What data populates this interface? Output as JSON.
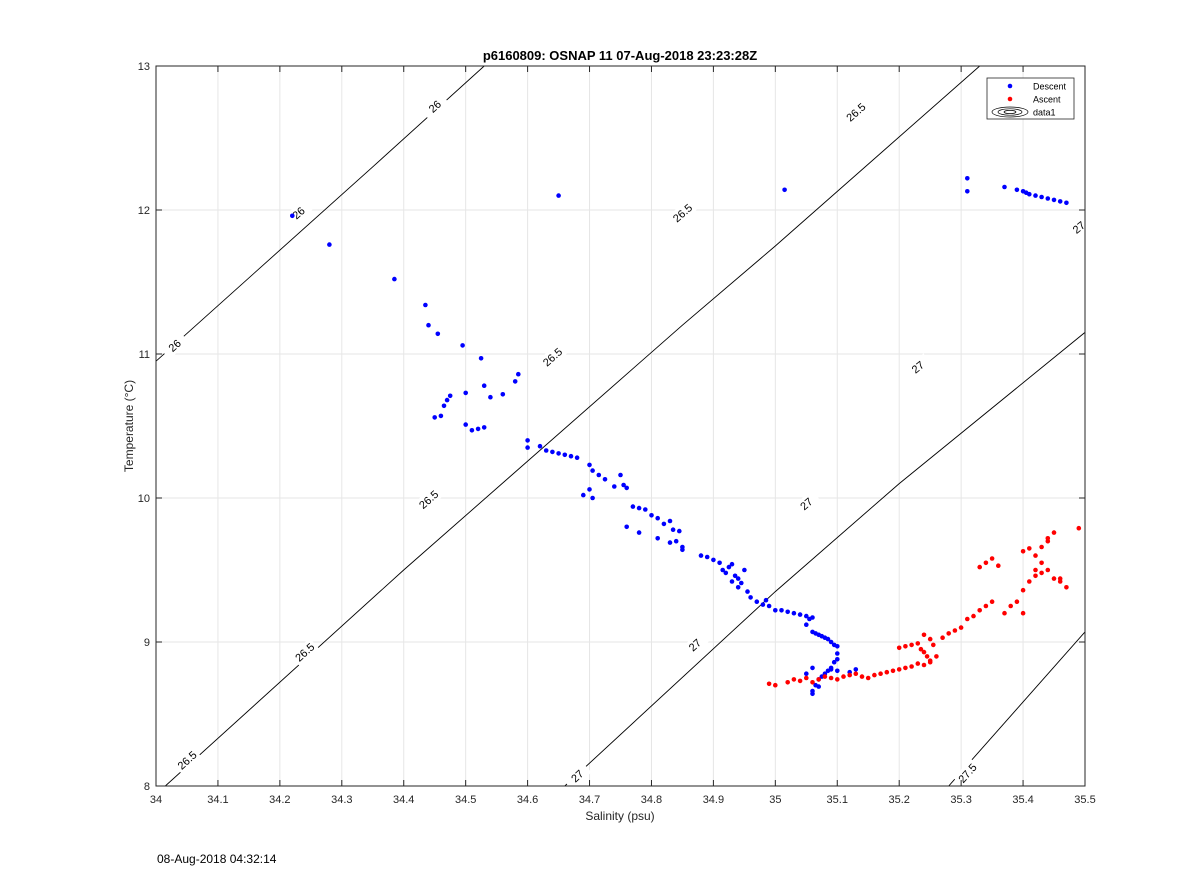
{
  "footer": {
    "timestamp": "08-Aug-2018 04:32:14"
  },
  "chart_data": {
    "type": "scatter",
    "title": "p6160809: OSNAP 11 07-Aug-2018 23:23:28Z",
    "xlabel": "Salinity (psu)",
    "ylabel": "Temperature (°C)",
    "xlim": [
      34,
      35.5
    ],
    "ylim": [
      8,
      13
    ],
    "xticks": [
      34,
      34.1,
      34.2,
      34.3,
      34.4,
      34.5,
      34.6,
      34.7,
      34.8,
      34.9,
      35,
      35.1,
      35.2,
      35.3,
      35.4,
      35.5
    ],
    "xtick_labels": [
      "34",
      "34.1",
      "34.2",
      "34.3",
      "34.4",
      "34.5",
      "34.6",
      "34.7",
      "34.8",
      "34.9",
      "35",
      "35.1",
      "35.2",
      "35.3",
      "35.4",
      "35.5"
    ],
    "yticks": [
      8,
      9,
      10,
      11,
      12,
      13
    ],
    "ytick_labels": [
      "8",
      "9",
      "10",
      "11",
      "12",
      "13"
    ],
    "grid": true,
    "legend": {
      "position": "top-right",
      "entries": [
        "Descent",
        "Ascent",
        "data1"
      ]
    },
    "colors": {
      "descent": "#0000ff",
      "ascent": "#ff0000",
      "contour": "#000000",
      "grid": "#e6e6e6"
    },
    "isopycnals": [
      {
        "label": "26",
        "points": [
          [
            34.0,
            10.95
          ],
          [
            34.35,
            12.3
          ],
          [
            34.53,
            13.0
          ]
        ],
        "label_positions": [
          [
            34.03,
            11.06
          ],
          [
            34.23,
            11.98
          ],
          [
            34.45,
            12.72
          ]
        ]
      },
      {
        "label": "26.5",
        "points": [
          [
            34.015,
            8.0
          ],
          [
            34.4,
            9.5
          ],
          [
            34.85,
            11.2
          ],
          [
            35.0,
            11.75
          ],
          [
            35.33,
            13.0
          ]
        ],
        "label_positions": [
          [
            34.05,
            8.18
          ],
          [
            34.24,
            8.93
          ],
          [
            34.44,
            9.99
          ],
          [
            34.64,
            10.98
          ],
          [
            34.85,
            11.98
          ],
          [
            35.13,
            12.68
          ]
        ]
      },
      {
        "label": "27",
        "points": [
          [
            34.66,
            8.0
          ],
          [
            35.0,
            9.35
          ],
          [
            35.2,
            10.1
          ],
          [
            35.5,
            11.15
          ]
        ],
        "label_positions": [
          [
            34.68,
            8.07
          ],
          [
            34.87,
            8.98
          ],
          [
            35.05,
            9.96
          ],
          [
            35.23,
            10.91
          ],
          [
            35.49,
            11.88
          ]
        ]
      },
      {
        "label": "27.5",
        "points": [
          [
            35.28,
            8.0
          ],
          [
            35.5,
            9.07
          ]
        ],
        "label_positions": [
          [
            35.31,
            8.09
          ]
        ]
      }
    ],
    "series": [
      {
        "name": "Descent",
        "color": "#0000ff",
        "x": [
          34.22,
          34.28,
          34.385,
          34.65,
          35.015,
          35.31,
          35.31,
          35.37,
          35.39,
          35.4,
          35.405,
          35.41,
          35.42,
          35.43,
          35.44,
          35.45,
          35.46,
          35.47,
          34.435,
          34.44,
          34.455,
          34.495,
          34.525,
          34.585,
          34.58,
          34.56,
          34.54,
          34.53,
          34.52,
          34.5,
          34.5,
          34.475,
          34.47,
          34.465,
          34.46,
          34.45,
          34.53,
          34.51,
          34.6,
          34.6,
          34.62,
          34.63,
          34.64,
          34.65,
          34.66,
          34.67,
          34.68,
          34.7,
          34.705,
          34.715,
          34.725,
          34.75,
          34.755,
          34.74,
          34.76,
          34.7,
          34.69,
          34.705,
          34.77,
          34.78,
          34.79,
          34.8,
          34.81,
          34.82,
          34.83,
          34.835,
          34.845,
          34.84,
          34.85,
          34.76,
          34.78,
          34.81,
          34.83,
          34.85,
          34.88,
          34.89,
          34.9,
          34.91,
          34.915,
          34.92,
          34.925,
          34.93,
          34.935,
          34.94,
          34.945,
          34.95,
          34.93,
          34.94,
          34.955,
          34.96,
          34.97,
          34.98,
          34.985,
          34.99,
          35.0,
          35.01,
          35.02,
          35.03,
          35.04,
          35.05,
          35.055,
          35.06,
          35.05,
          35.06,
          35.065,
          35.07,
          35.075,
          35.08,
          35.085,
          35.09,
          35.095,
          35.1,
          35.1,
          35.1,
          35.095,
          35.09,
          35.085,
          35.08,
          35.075,
          35.07,
          35.065,
          35.06,
          35.06,
          35.07,
          35.09,
          35.1,
          35.12,
          35.13,
          35.06,
          35.05
        ],
        "y": [
          11.96,
          11.76,
          11.52,
          12.1,
          12.14,
          12.22,
          12.13,
          12.16,
          12.14,
          12.13,
          12.12,
          12.11,
          12.1,
          12.09,
          12.08,
          12.07,
          12.06,
          12.05,
          11.34,
          11.2,
          11.14,
          11.06,
          10.97,
          10.86,
          10.81,
          10.72,
          10.7,
          10.78,
          10.48,
          10.51,
          10.73,
          10.71,
          10.68,
          10.64,
          10.57,
          10.56,
          10.49,
          10.47,
          10.4,
          10.35,
          10.36,
          10.33,
          10.32,
          10.31,
          10.3,
          10.29,
          10.28,
          10.23,
          10.19,
          10.16,
          10.13,
          10.16,
          10.09,
          10.08,
          10.07,
          10.06,
          10.02,
          10.0,
          9.94,
          9.93,
          9.92,
          9.88,
          9.86,
          9.82,
          9.84,
          9.78,
          9.77,
          9.7,
          9.66,
          9.8,
          9.76,
          9.72,
          9.69,
          9.64,
          9.6,
          9.59,
          9.57,
          9.55,
          9.5,
          9.48,
          9.52,
          9.54,
          9.46,
          9.44,
          9.41,
          9.5,
          9.42,
          9.38,
          9.35,
          9.31,
          9.28,
          9.26,
          9.29,
          9.25,
          9.22,
          9.22,
          9.21,
          9.2,
          9.19,
          9.18,
          9.16,
          9.17,
          9.12,
          9.07,
          9.06,
          9.05,
          9.04,
          9.03,
          9.02,
          9.0,
          8.98,
          8.97,
          8.92,
          8.88,
          8.86,
          8.82,
          8.8,
          8.78,
          8.76,
          8.74,
          8.7,
          8.66,
          8.64,
          8.69,
          8.81,
          8.8,
          8.79,
          8.81,
          8.82,
          8.78
        ]
      },
      {
        "name": "Ascent",
        "color": "#ff0000",
        "x": [
          34.99,
          35.0,
          35.02,
          35.03,
          35.04,
          35.05,
          35.06,
          35.07,
          35.08,
          35.09,
          35.1,
          35.11,
          35.12,
          35.13,
          35.14,
          35.15,
          35.16,
          35.17,
          35.18,
          35.19,
          35.2,
          35.21,
          35.22,
          35.2,
          35.21,
          35.22,
          35.23,
          35.235,
          35.24,
          35.245,
          35.25,
          35.23,
          35.24,
          35.25,
          35.24,
          35.25,
          35.255,
          35.26,
          35.27,
          35.28,
          35.29,
          35.3,
          35.31,
          35.32,
          35.33,
          35.34,
          35.35,
          35.33,
          35.34,
          35.35,
          35.36,
          35.37,
          35.38,
          35.39,
          35.4,
          35.4,
          35.41,
          35.42,
          35.43,
          35.44,
          35.45,
          35.46,
          35.47,
          35.4,
          35.41,
          35.42,
          35.43,
          35.44,
          35.45,
          35.42,
          35.43,
          35.44,
          35.46,
          35.49
        ],
        "y": [
          8.71,
          8.7,
          8.72,
          8.74,
          8.73,
          8.75,
          8.72,
          8.74,
          8.76,
          8.75,
          8.74,
          8.76,
          8.77,
          8.78,
          8.76,
          8.75,
          8.77,
          8.78,
          8.79,
          8.8,
          8.81,
          8.82,
          8.83,
          8.96,
          8.97,
          8.98,
          8.99,
          8.95,
          8.93,
          8.9,
          8.87,
          8.85,
          8.84,
          8.86,
          9.05,
          9.02,
          8.98,
          8.9,
          9.03,
          9.06,
          9.08,
          9.1,
          9.16,
          9.18,
          9.22,
          9.25,
          9.28,
          9.52,
          9.55,
          9.58,
          9.53,
          9.2,
          9.25,
          9.28,
          9.2,
          9.36,
          9.42,
          9.46,
          9.48,
          9.5,
          9.44,
          9.42,
          9.38,
          9.63,
          9.65,
          9.6,
          9.66,
          9.7,
          9.76,
          9.5,
          9.55,
          9.72,
          9.44,
          9.79
        ]
      }
    ]
  }
}
